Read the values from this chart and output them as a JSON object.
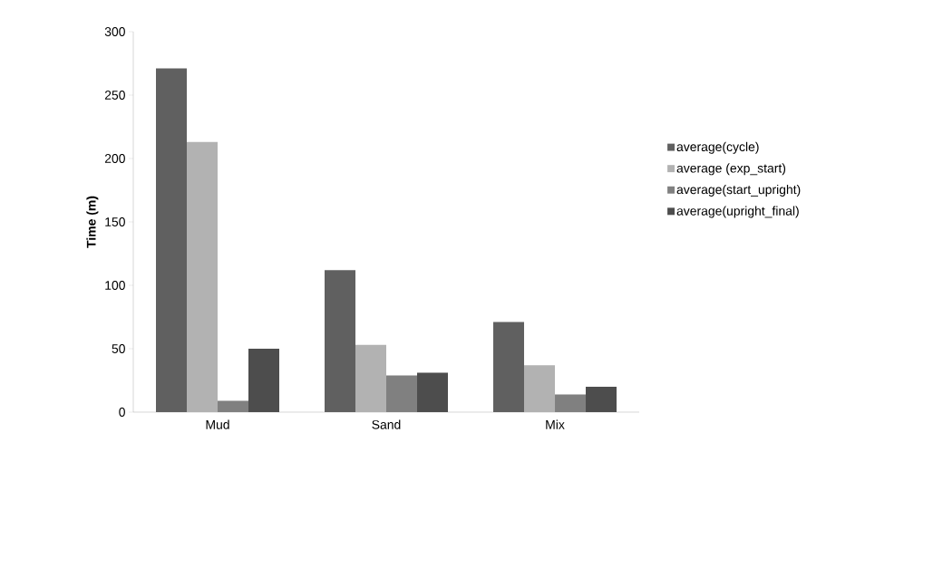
{
  "chart_data": {
    "type": "bar",
    "ylabel": "Time (m)",
    "categories": [
      "Mud",
      "Sand",
      "Mix"
    ],
    "series": [
      {
        "name": "average(cycle)",
        "color": "#606060",
        "values": [
          271,
          112,
          71
        ]
      },
      {
        "name": "average (exp_start)",
        "color": "#b2b2b2",
        "values": [
          213,
          53,
          37
        ]
      },
      {
        "name": "average(start_upright)",
        "color": "#808080",
        "values": [
          9,
          29,
          14
        ]
      },
      {
        "name": "average(upright_final)",
        "color": "#4d4d4d",
        "values": [
          50,
          31,
          20
        ]
      }
    ],
    "ylim": [
      0,
      300
    ],
    "yticks": [
      0,
      50,
      100,
      150,
      200,
      250,
      300
    ],
    "grid": false,
    "legend": "right"
  }
}
